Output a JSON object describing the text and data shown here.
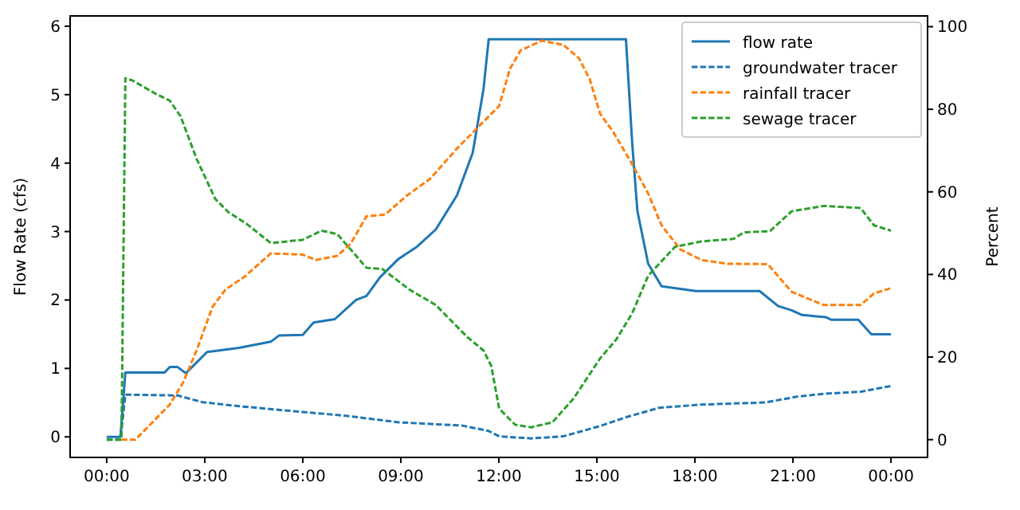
{
  "chart_data": {
    "type": "line",
    "ylabel": "Flow Rate (cfs)",
    "y2label": "Percent",
    "xlim": [
      -1.12,
      25.12
    ],
    "xticks": [
      {
        "value": 0,
        "label": "00:00"
      },
      {
        "value": 3,
        "label": "03:00"
      },
      {
        "value": 6,
        "label": "06:00"
      },
      {
        "value": 9,
        "label": "09:00"
      },
      {
        "value": 12,
        "label": "12:00"
      },
      {
        "value": 15,
        "label": "15:00"
      },
      {
        "value": 18,
        "label": "18:00"
      },
      {
        "value": 21,
        "label": "21:00"
      },
      {
        "value": 24,
        "label": "00:00"
      }
    ],
    "ylim": [
      -0.3,
      6.15
    ],
    "yticks": [
      0,
      1,
      2,
      3,
      4,
      5,
      6
    ],
    "y2lim": [
      -4.3,
      102.6
    ],
    "y2ticks": [
      0,
      20,
      40,
      60,
      80,
      100
    ],
    "legend": "top right",
    "marker": "none",
    "grid": false,
    "series": [
      {
        "name": "flow rate",
        "color": "#1f77b4",
        "line_style": "solid",
        "x": [
          0,
          0.42,
          0.57,
          1.77,
          1.93,
          2.17,
          2.42,
          3.07,
          4.05,
          5.02,
          5.27,
          6.0,
          6.33,
          6.98,
          7.63,
          7.95,
          8.36,
          8.93,
          9.5,
          10.07,
          10.72,
          11.2,
          11.53,
          11.69,
          15.89,
          16.08,
          16.24,
          16.57,
          16.98,
          18.03,
          19.98,
          20.55,
          20.96,
          21.28,
          22.0,
          22.18,
          23.0,
          23.4,
          24.0
        ],
        "values": [
          0,
          0,
          0.94,
          0.94,
          1.02,
          1.02,
          0.93,
          1.24,
          1.3,
          1.39,
          1.48,
          1.49,
          1.67,
          1.72,
          2.0,
          2.06,
          2.33,
          2.6,
          2.78,
          3.03,
          3.53,
          4.15,
          5.08,
          5.81,
          5.81,
          4.3,
          3.3,
          2.53,
          2.2,
          2.13,
          2.13,
          1.91,
          1.85,
          1.78,
          1.75,
          1.71,
          1.71,
          1.5,
          1.5
        ]
      },
      {
        "name": "groundwater tracer",
        "color": "#1f77b4",
        "line_style": "dashed",
        "axis": "y2",
        "x": [
          0,
          0.42,
          0.57,
          2.17,
          2.91,
          4.05,
          6.0,
          7.3,
          8.93,
          10.88,
          11.69,
          12.01,
          12.99,
          13.97,
          15.1,
          15.92,
          16.9,
          18.2,
          20.15,
          21.12,
          21.94,
          23.07,
          24.0
        ],
        "values": [
          0,
          0,
          10.9,
          10.7,
          9.1,
          8.1,
          6.7,
          5.8,
          4.2,
          3.4,
          2.1,
          0.8,
          0.3,
          0.8,
          3.3,
          5.5,
          7.7,
          8.5,
          9.0,
          10.4,
          11.1,
          11.6,
          13.0
        ]
      },
      {
        "name": "rainfall tracer",
        "color": "#ff7f0e",
        "line_style": "dashed",
        "axis": "y2",
        "x": [
          0.45,
          0.88,
          1.93,
          2.34,
          2.75,
          3.24,
          3.64,
          4.21,
          5.02,
          6.0,
          6.4,
          7.05,
          7.46,
          7.95,
          8.52,
          9.17,
          9.9,
          10.72,
          11.53,
          12.01,
          12.34,
          12.67,
          13.32,
          13.97,
          14.45,
          14.78,
          15.1,
          15.51,
          16.08,
          16.57,
          16.98,
          17.55,
          18.2,
          19.0,
          20.23,
          20.96,
          21.94,
          23.07,
          23.48,
          24.0
        ],
        "values": [
          0,
          0,
          8.5,
          13.9,
          21.6,
          32.2,
          36.4,
          39.4,
          45.1,
          44.8,
          43.5,
          44.5,
          47.4,
          54.1,
          54.5,
          59,
          63.2,
          70.5,
          77,
          80.8,
          89.8,
          94.3,
          96.6,
          95.6,
          92.4,
          87.3,
          78.9,
          74.4,
          66.7,
          59.6,
          51.9,
          46.1,
          43.5,
          42.6,
          42.5,
          35.8,
          32.6,
          32.6,
          35.4,
          36.7
        ]
      },
      {
        "name": "sewage tracer",
        "color": "#2ca02c",
        "line_style": "dashed",
        "axis": "y2",
        "x": [
          0,
          0.45,
          0.57,
          0.78,
          1.51,
          1.93,
          2.26,
          2.75,
          3.32,
          3.72,
          4.29,
          5.02,
          6.0,
          6.57,
          7.05,
          7.46,
          7.95,
          8.44,
          9.25,
          10.07,
          11.04,
          11.53,
          11.77,
          12.01,
          12.5,
          12.99,
          13.64,
          14.29,
          15.1,
          15.59,
          16.08,
          16.57,
          17.39,
          18.2,
          19.18,
          19.5,
          20.3,
          20.96,
          21.94,
          23.07,
          23.48,
          24.0
        ],
        "values": [
          0,
          0,
          87.5,
          87,
          83.7,
          82.1,
          78.3,
          68,
          58.3,
          55.1,
          52.2,
          47.6,
          48.4,
          50.6,
          49.8,
          46.1,
          41.6,
          41.3,
          36.4,
          32.6,
          24.8,
          21.6,
          17.8,
          7.5,
          3.6,
          3.0,
          4.2,
          10,
          19.7,
          24.2,
          30.6,
          39.7,
          46.7,
          48,
          48.6,
          50.2,
          50.5,
          55.3,
          56.6,
          56.1,
          51.9,
          50.6
        ]
      }
    ]
  }
}
